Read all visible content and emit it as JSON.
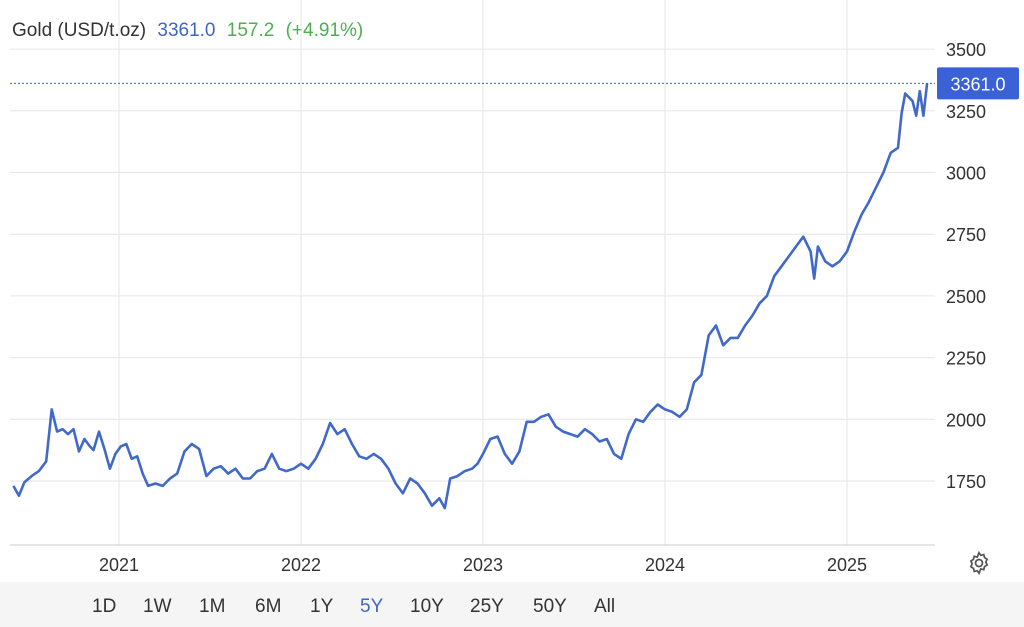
{
  "header": {
    "name": "Gold (USD/t.oz)",
    "price": "3361.0",
    "change": "157.2",
    "pct": "(+4.91%)"
  },
  "colors": {
    "line": "#4169c9",
    "price_tag": "#3a62d6",
    "change": "#4caf50",
    "grid": "#e6e6e6"
  },
  "price_tag": "3361.0",
  "settings_icon": "gear-icon",
  "ranges": [
    {
      "label": "1D"
    },
    {
      "label": "1W"
    },
    {
      "label": "1M"
    },
    {
      "label": "6M"
    },
    {
      "label": "1Y"
    },
    {
      "label": "5Y",
      "active": true
    },
    {
      "label": "10Y"
    },
    {
      "label": "25Y"
    },
    {
      "label": "50Y"
    },
    {
      "label": "All"
    }
  ],
  "chart_data": {
    "type": "line",
    "title": "Gold (USD/t.oz)",
    "y_ticks": [
      "3500",
      "3250",
      "3000",
      "2750",
      "2500",
      "2250",
      "2000",
      "1750"
    ],
    "x_ticks": [
      "2021",
      "2022",
      "2023",
      "2024",
      "2025"
    ],
    "ylim": [
      1560,
      3560
    ],
    "xlim": [
      2020.42,
      2025.5
    ],
    "grid": true,
    "series": [
      {
        "values": [
          [
            2020.42,
            1730
          ],
          [
            2020.45,
            1690
          ],
          [
            2020.48,
            1745
          ],
          [
            2020.52,
            1770
          ],
          [
            2020.56,
            1790
          ],
          [
            2020.6,
            1830
          ],
          [
            2020.63,
            2040
          ],
          [
            2020.66,
            1950
          ],
          [
            2020.69,
            1960
          ],
          [
            2020.72,
            1940
          ],
          [
            2020.75,
            1960
          ],
          [
            2020.78,
            1870
          ],
          [
            2020.81,
            1920
          ],
          [
            2020.84,
            1890
          ],
          [
            2020.86,
            1875
          ],
          [
            2020.89,
            1950
          ],
          [
            2020.92,
            1880
          ],
          [
            2020.95,
            1800
          ],
          [
            2020.98,
            1860
          ],
          [
            2021.01,
            1890
          ],
          [
            2021.04,
            1900
          ],
          [
            2021.07,
            1840
          ],
          [
            2021.1,
            1850
          ],
          [
            2021.13,
            1780
          ],
          [
            2021.16,
            1730
          ],
          [
            2021.2,
            1740
          ],
          [
            2021.24,
            1730
          ],
          [
            2021.28,
            1760
          ],
          [
            2021.32,
            1780
          ],
          [
            2021.36,
            1870
          ],
          [
            2021.4,
            1900
          ],
          [
            2021.44,
            1880
          ],
          [
            2021.48,
            1770
          ],
          [
            2021.52,
            1800
          ],
          [
            2021.56,
            1810
          ],
          [
            2021.6,
            1780
          ],
          [
            2021.64,
            1800
          ],
          [
            2021.68,
            1760
          ],
          [
            2021.72,
            1760
          ],
          [
            2021.76,
            1790
          ],
          [
            2021.8,
            1800
          ],
          [
            2021.84,
            1860
          ],
          [
            2021.88,
            1800
          ],
          [
            2021.92,
            1790
          ],
          [
            2021.96,
            1800
          ],
          [
            2022.0,
            1820
          ],
          [
            2022.04,
            1800
          ],
          [
            2022.08,
            1840
          ],
          [
            2022.12,
            1900
          ],
          [
            2022.16,
            1985
          ],
          [
            2022.2,
            1940
          ],
          [
            2022.24,
            1960
          ],
          [
            2022.28,
            1900
          ],
          [
            2022.32,
            1850
          ],
          [
            2022.36,
            1840
          ],
          [
            2022.4,
            1860
          ],
          [
            2022.44,
            1840
          ],
          [
            2022.48,
            1800
          ],
          [
            2022.52,
            1740
          ],
          [
            2022.56,
            1700
          ],
          [
            2022.6,
            1760
          ],
          [
            2022.64,
            1740
          ],
          [
            2022.68,
            1700
          ],
          [
            2022.72,
            1650
          ],
          [
            2022.76,
            1680
          ],
          [
            2022.79,
            1640
          ],
          [
            2022.82,
            1760
          ],
          [
            2022.86,
            1770
          ],
          [
            2022.9,
            1790
          ],
          [
            2022.94,
            1800
          ],
          [
            2022.97,
            1820
          ],
          [
            2023.0,
            1860
          ],
          [
            2023.04,
            1920
          ],
          [
            2023.08,
            1930
          ],
          [
            2023.12,
            1860
          ],
          [
            2023.16,
            1820
          ],
          [
            2023.2,
            1870
          ],
          [
            2023.24,
            1990
          ],
          [
            2023.28,
            1990
          ],
          [
            2023.32,
            2010
          ],
          [
            2023.36,
            2020
          ],
          [
            2023.4,
            1970
          ],
          [
            2023.44,
            1950
          ],
          [
            2023.48,
            1940
          ],
          [
            2023.52,
            1930
          ],
          [
            2023.56,
            1960
          ],
          [
            2023.6,
            1940
          ],
          [
            2023.64,
            1910
          ],
          [
            2023.68,
            1920
          ],
          [
            2023.72,
            1860
          ],
          [
            2023.76,
            1840
          ],
          [
            2023.8,
            1940
          ],
          [
            2023.84,
            2000
          ],
          [
            2023.88,
            1990
          ],
          [
            2023.92,
            2030
          ],
          [
            2023.96,
            2060
          ],
          [
            2024.0,
            2040
          ],
          [
            2024.04,
            2030
          ],
          [
            2024.08,
            2010
          ],
          [
            2024.12,
            2040
          ],
          [
            2024.16,
            2150
          ],
          [
            2024.2,
            2180
          ],
          [
            2024.24,
            2340
          ],
          [
            2024.28,
            2380
          ],
          [
            2024.32,
            2300
          ],
          [
            2024.36,
            2330
          ],
          [
            2024.4,
            2330
          ],
          [
            2024.44,
            2380
          ],
          [
            2024.48,
            2420
          ],
          [
            2024.52,
            2470
          ],
          [
            2024.56,
            2500
          ],
          [
            2024.6,
            2580
          ],
          [
            2024.64,
            2620
          ],
          [
            2024.68,
            2660
          ],
          [
            2024.72,
            2700
          ],
          [
            2024.76,
            2740
          ],
          [
            2024.8,
            2680
          ],
          [
            2024.82,
            2570
          ],
          [
            2024.84,
            2700
          ],
          [
            2024.88,
            2640
          ],
          [
            2024.92,
            2620
          ],
          [
            2024.96,
            2640
          ],
          [
            2025.0,
            2680
          ],
          [
            2025.04,
            2760
          ],
          [
            2025.08,
            2830
          ],
          [
            2025.12,
            2880
          ],
          [
            2025.16,
            2940
          ],
          [
            2025.2,
            3000
          ],
          [
            2025.24,
            3080
          ],
          [
            2025.28,
            3100
          ],
          [
            2025.3,
            3240
          ],
          [
            2025.32,
            3320
          ],
          [
            2025.36,
            3290
          ],
          [
            2025.38,
            3230
          ],
          [
            2025.4,
            3330
          ],
          [
            2025.42,
            3230
          ],
          [
            2025.44,
            3361
          ]
        ]
      }
    ]
  }
}
